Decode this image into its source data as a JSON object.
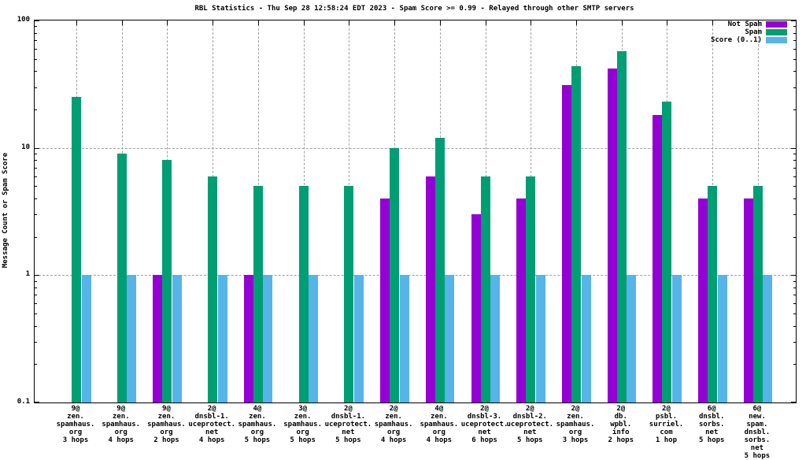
{
  "window": {
    "background": "#ffffff",
    "foreground": "#000000",
    "grid_color": "#a0a0a0"
  },
  "chart_data": {
    "type": "bar",
    "title": "RBL Statistics - Thu Sep 28 12:58:24 EDT 2023 - Spam Score >= 0.99 - Relayed through other SMTP servers",
    "ylabel": "Message Count or Spam Score",
    "xlabel": "",
    "y_scale": "log",
    "ylim": [
      0.1,
      100
    ],
    "yticks": {
      "values": [
        100,
        10,
        1,
        0.1
      ],
      "labels": [
        "100",
        "10",
        "1",
        "0.1"
      ]
    },
    "grid": {
      "horizontal_at": [
        1,
        10
      ],
      "vertical": "at each category center",
      "style": "gray dashed"
    },
    "legend": {
      "position": "top-right-inside",
      "items": [
        {
          "label": "Not Spam",
          "color": "#9400d3"
        },
        {
          "label": "Spam",
          "color": "#009e73"
        },
        {
          "label": "Score (0..1)",
          "color": "#56b4e9"
        }
      ]
    },
    "categories": [
      [
        "9@",
        "zen.",
        "spamhaus.",
        "org",
        "3 hops"
      ],
      [
        "9@",
        "zen.",
        "spamhaus.",
        "org",
        "4 hops"
      ],
      [
        "9@",
        "zen.",
        "spamhaus.",
        "org",
        "2 hops"
      ],
      [
        "2@",
        "dnsbl-1.",
        "uceprotect.",
        "net",
        "4 hops"
      ],
      [
        "4@",
        "zen.",
        "spamhaus.",
        "org",
        "5 hops"
      ],
      [
        "3@",
        "zen.",
        "spamhaus.",
        "org",
        "5 hops"
      ],
      [
        "2@",
        "dnsbl-1.",
        "uceprotect.",
        "net",
        "5 hops"
      ],
      [
        "2@",
        "zen.",
        "spamhaus.",
        "org",
        "4 hops"
      ],
      [
        "4@",
        "zen.",
        "spamhaus.",
        "org",
        "4 hops"
      ],
      [
        "2@",
        "dnsbl-3.",
        "uceprotect.",
        "net",
        "6 hops"
      ],
      [
        "2@",
        "dnsbl-2.",
        "uceprotect.",
        "net",
        "5 hops"
      ],
      [
        "2@",
        "zen.",
        "spamhaus.",
        "org",
        "3 hops"
      ],
      [
        "2@",
        "db.",
        "wpbl.",
        "info",
        "2 hops"
      ],
      [
        "2@",
        "psbl.",
        "surriel.",
        "com",
        "1 hop"
      ],
      [
        "6@",
        "dnsbl.",
        "sorbs.",
        "net",
        "5 hops"
      ],
      [
        "6@",
        "new.",
        "spam.",
        "dnsbl.",
        "sorbs.",
        "net",
        "5 hops"
      ]
    ],
    "series": [
      {
        "name": "Not Spam",
        "color": "#9400d3",
        "values": [
          0,
          0,
          1,
          0,
          1,
          0,
          0,
          4,
          6,
          3,
          4,
          31,
          42,
          18,
          4,
          4
        ]
      },
      {
        "name": "Spam",
        "color": "#009e73",
        "values": [
          25,
          9,
          8,
          6,
          5,
          5,
          5,
          10,
          12,
          6,
          6,
          44,
          57,
          23,
          5,
          5
        ]
      },
      {
        "name": "Score (0..1)",
        "color": "#56b4e9",
        "values": [
          1,
          1,
          1,
          1,
          1,
          1,
          1,
          1,
          1,
          1,
          1,
          1,
          1,
          1,
          1,
          1
        ]
      }
    ]
  }
}
